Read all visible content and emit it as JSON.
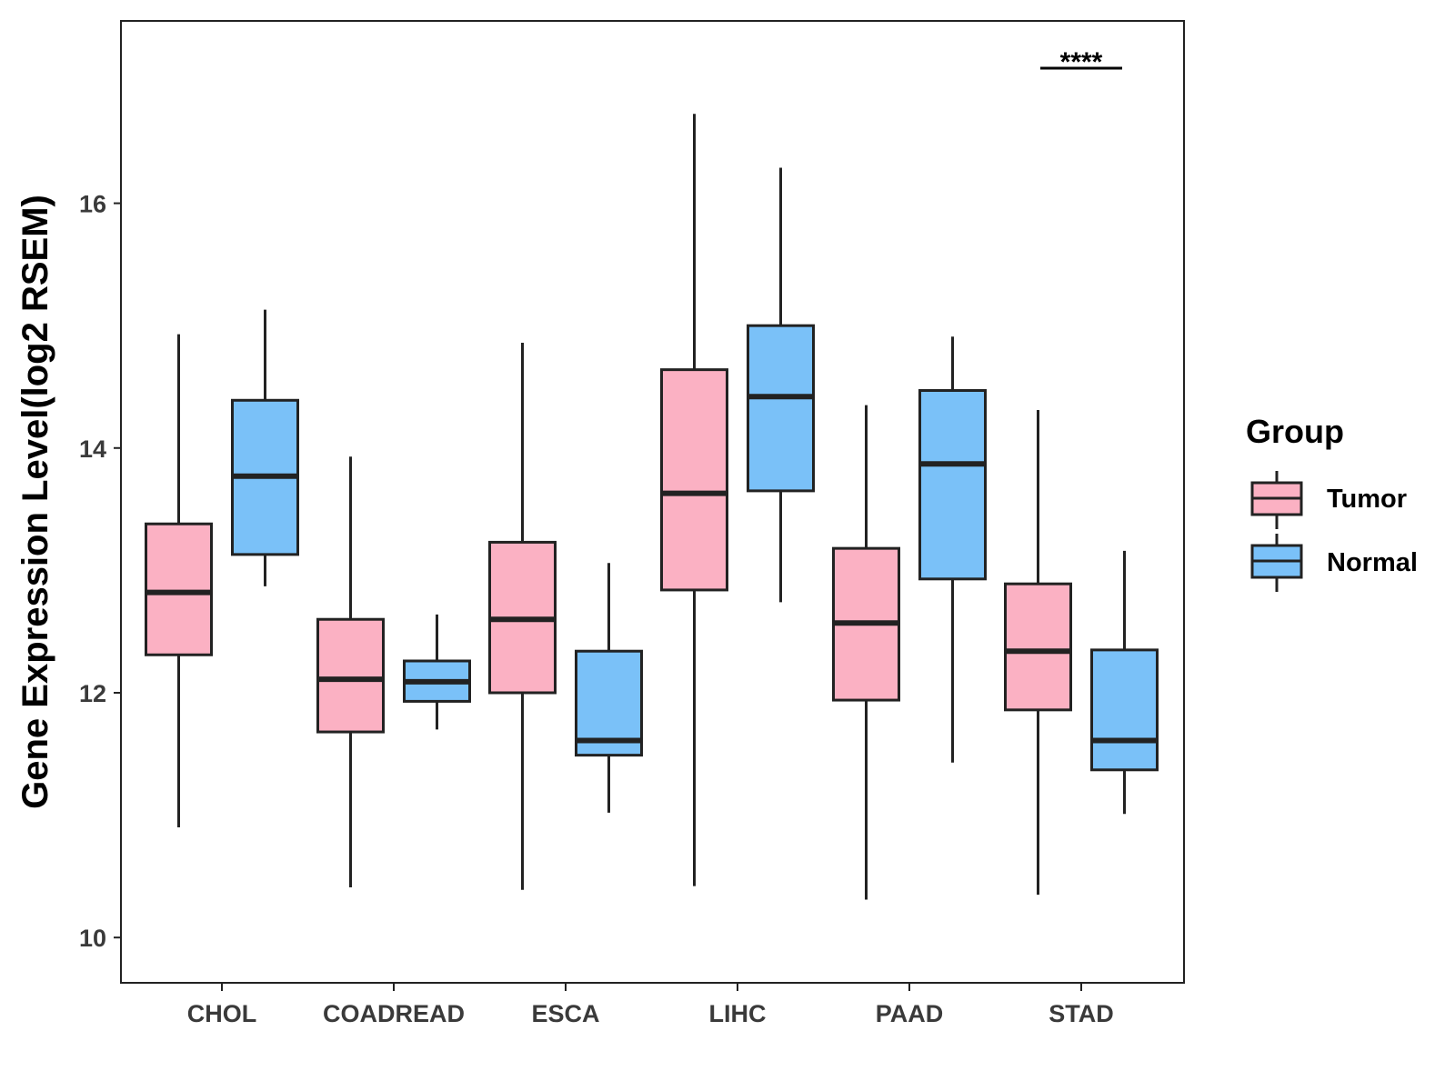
{
  "chart_data": {
    "type": "boxplot",
    "title": "",
    "xlabel": "",
    "ylabel": "Gene Expression Level(log2 RSEM)",
    "ylim": [
      9.63,
      17.49
    ],
    "yticks": [
      10,
      12,
      14,
      16
    ],
    "grid": false,
    "categories": [
      "CHOL",
      "COADREAD",
      "ESCA",
      "LIHC",
      "PAAD",
      "STAD"
    ],
    "series": [
      {
        "name": "Tumor",
        "color": "#FBB1C3",
        "boxes": [
          {
            "min": 10.9,
            "q1": 12.31,
            "median": 12.82,
            "q3": 13.38,
            "max": 14.93
          },
          {
            "min": 10.41,
            "q1": 11.68,
            "median": 12.11,
            "q3": 12.6,
            "max": 13.93
          },
          {
            "min": 10.39,
            "q1": 12.0,
            "median": 12.6,
            "q3": 13.23,
            "max": 14.86
          },
          {
            "min": 10.42,
            "q1": 12.84,
            "median": 13.63,
            "q3": 14.64,
            "max": 16.73
          },
          {
            "min": 10.31,
            "q1": 11.94,
            "median": 12.57,
            "q3": 13.18,
            "max": 14.35
          },
          {
            "min": 10.35,
            "q1": 11.86,
            "median": 12.34,
            "q3": 12.89,
            "max": 14.31
          }
        ]
      },
      {
        "name": "Normal",
        "color": "#7AC1F8",
        "boxes": [
          {
            "min": 12.87,
            "q1": 13.13,
            "median": 13.77,
            "q3": 14.39,
            "max": 15.13
          },
          {
            "min": 11.7,
            "q1": 11.93,
            "median": 12.09,
            "q3": 12.26,
            "max": 12.64
          },
          {
            "min": 11.02,
            "q1": 11.49,
            "median": 11.61,
            "q3": 12.34,
            "max": 13.06
          },
          {
            "min": 12.74,
            "q1": 13.65,
            "median": 14.42,
            "q3": 15.0,
            "max": 16.29
          },
          {
            "min": 11.43,
            "q1": 12.93,
            "median": 13.87,
            "q3": 14.47,
            "max": 14.91
          },
          {
            "min": 11.01,
            "q1": 11.37,
            "median": 11.61,
            "q3": 12.35,
            "max": 13.16
          }
        ]
      }
    ],
    "annotations": [
      {
        "category": "STAD",
        "text": "****"
      }
    ],
    "legend": {
      "title": "Group",
      "entries": [
        "Tumor",
        "Normal"
      ],
      "position": "right"
    }
  }
}
